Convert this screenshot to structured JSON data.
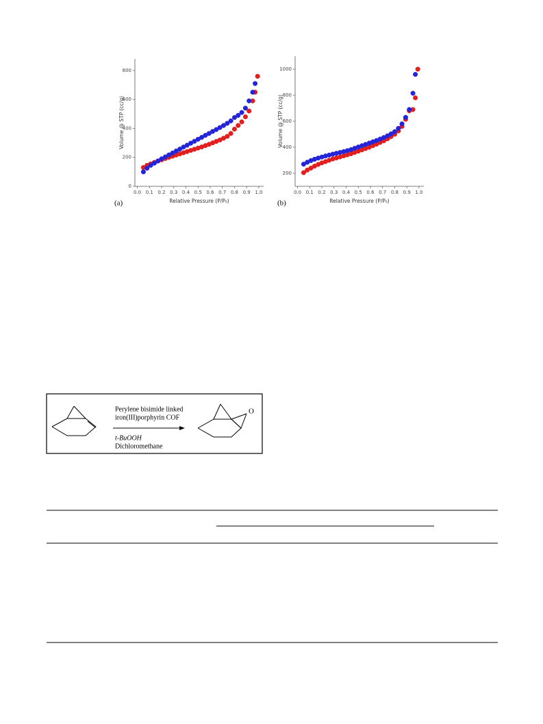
{
  "chart_data": [
    {
      "type": "scatter",
      "panel_label": "(a)",
      "x_label": "Relative Pressure (P/P₀)",
      "y_label": "Volume @ STP (cc/g)",
      "xlim": [
        -0.02,
        1.04
      ],
      "ylim": [
        0,
        880
      ],
      "xticks": [
        {
          "value": 0,
          "label": "0.0"
        },
        0.1,
        0.2,
        0.3,
        0.4,
        0.5,
        0.6,
        0.7,
        0.8,
        0.9,
        {
          "value": 1,
          "label": "1.0"
        }
      ],
      "yticks": [
        0,
        200,
        400,
        600,
        800
      ],
      "x": [
        0.05,
        0.08,
        0.11,
        0.14,
        0.17,
        0.2,
        0.23,
        0.26,
        0.29,
        0.32,
        0.35,
        0.38,
        0.41,
        0.44,
        0.47,
        0.5,
        0.53,
        0.56,
        0.59,
        0.62,
        0.65,
        0.68,
        0.71,
        0.74,
        0.77,
        0.8,
        0.83,
        0.86,
        0.89,
        0.92,
        0.95,
        0.97,
        0.99
      ],
      "series": [
        {
          "color": "#e21f1f",
          "values": [
            130,
            145,
            155,
            165,
            175,
            183,
            192,
            200,
            208,
            216,
            224,
            232,
            240,
            248,
            256,
            264,
            272,
            281,
            290,
            300,
            310,
            320,
            332,
            345,
            365,
            395,
            420,
            445,
            480,
            520,
            590,
            650,
            760
          ]
        },
        {
          "color": "#2424d8",
          "values": [
            100,
            125,
            145,
            160,
            175,
            190,
            203,
            217,
            230,
            244,
            257,
            271,
            284,
            298,
            311,
            325,
            338,
            352,
            365,
            379,
            392,
            406,
            420,
            435,
            452,
            475,
            490,
            510,
            540,
            590,
            650,
            710,
            null
          ]
        }
      ]
    },
    {
      "type": "scatter",
      "panel_label": "(b)",
      "x_label": "Relative Pressure (P/P₀)",
      "y_label": "Volume @ STP (cc/g)",
      "xlim": [
        -0.02,
        1.04
      ],
      "ylim": [
        100,
        1100
      ],
      "xticks": [
        {
          "value": 0,
          "label": "0.0"
        },
        0.1,
        0.2,
        0.3,
        0.4,
        0.5,
        0.6,
        0.7,
        0.8,
        0.9,
        {
          "value": 1,
          "label": "1.0"
        }
      ],
      "yticks": [
        200,
        400,
        600,
        800,
        1000
      ],
      "x": [
        0.05,
        0.08,
        0.11,
        0.14,
        0.17,
        0.2,
        0.23,
        0.26,
        0.29,
        0.32,
        0.35,
        0.38,
        0.41,
        0.44,
        0.47,
        0.5,
        0.53,
        0.56,
        0.59,
        0.62,
        0.65,
        0.68,
        0.71,
        0.74,
        0.77,
        0.8,
        0.83,
        0.86,
        0.89,
        0.92,
        0.95,
        0.97,
        0.99
      ],
      "series": [
        {
          "color": "#e21f1f",
          "values": [
            205,
            225,
            240,
            255,
            268,
            280,
            290,
            300,
            310,
            318,
            326,
            334,
            342,
            350,
            360,
            370,
            380,
            390,
            400,
            412,
            424,
            437,
            450,
            465,
            482,
            500,
            525,
            560,
            615,
            680,
            690,
            780,
            1000
          ]
        },
        {
          "color": "#2424d8",
          "values": [
            270,
            285,
            298,
            308,
            317,
            325,
            333,
            340,
            347,
            354,
            360,
            367,
            374,
            382,
            392,
            402,
            412,
            422,
            432,
            442,
            452,
            463,
            475,
            488,
            503,
            520,
            545,
            580,
            630,
            690,
            815,
            960,
            null
          ]
        }
      ]
    }
  ],
  "scheme": {
    "conditions_top": [
      "Perylene bisimide linked",
      "iron(III)porphyrin COF"
    ],
    "conditions_bottom": [
      "t-BuOOH",
      "Dichloromethane"
    ],
    "oxygen": "O"
  }
}
